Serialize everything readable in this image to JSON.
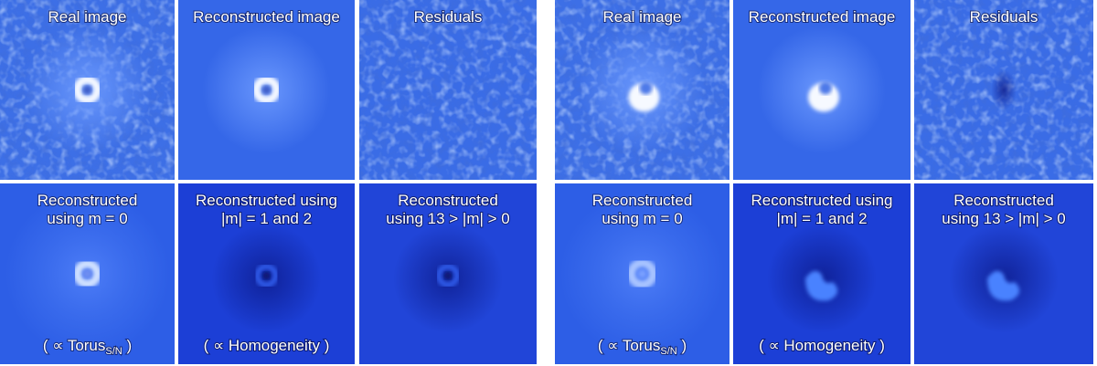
{
  "groups": [
    {
      "panels": [
        {
          "title": [
            "Real image"
          ]
        },
        {
          "title": [
            "Reconstructed image"
          ]
        },
        {
          "title": [
            "Residuals"
          ]
        },
        {
          "title": [
            "Reconstructed",
            "using m = 0"
          ],
          "caption": {
            "prefix": "( ∝  Torus",
            "subscript": "S/N",
            "suffix": " )"
          }
        },
        {
          "title": [
            "Reconstructed using",
            "|m| = 1 and 2"
          ],
          "caption": {
            "prefix": "( ∝  Homogeneity )"
          }
        },
        {
          "title": [
            "Reconstructed",
            "using 13 > |m| > 0"
          ]
        }
      ]
    },
    {
      "panels": [
        {
          "title": [
            "Real image"
          ]
        },
        {
          "title": [
            "Reconstructed image"
          ]
        },
        {
          "title": [
            "Residuals"
          ]
        },
        {
          "title": [
            "Reconstructed",
            "using m = 0"
          ],
          "caption": {
            "prefix": "( ∝  Torus",
            "subscript": "S/N",
            "suffix": " )"
          }
        },
        {
          "title": [
            "Reconstructed using",
            "|m| = 1 and 2"
          ],
          "caption": {
            "prefix": "( ∝  Homogeneity )"
          }
        },
        {
          "title": [
            "Reconstructed",
            "using 13 > |m| > 0"
          ]
        }
      ]
    }
  ]
}
